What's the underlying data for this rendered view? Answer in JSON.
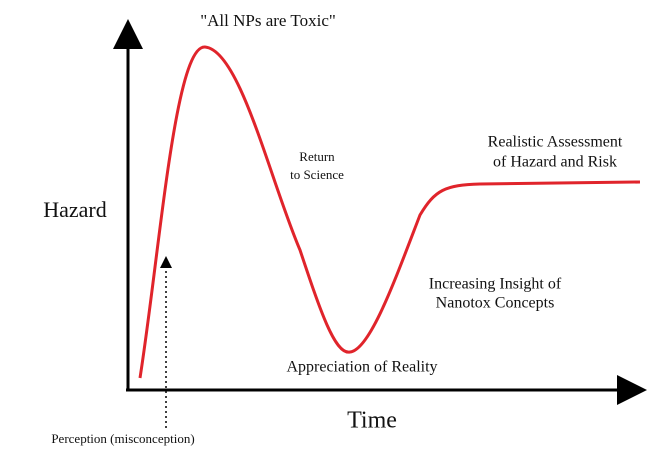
{
  "axes": {
    "y_label": "Hazard",
    "x_label": "Time"
  },
  "annotations": [
    {
      "lines": [
        "\"All NPs are Toxic\""
      ]
    },
    {
      "lines": [
        "Return",
        "to Science"
      ]
    },
    {
      "lines": [
        "Realistic Assessment",
        "of Hazard and Risk"
      ]
    },
    {
      "lines": [
        "Increasing Insight of",
        "Nanotox Concepts"
      ]
    },
    {
      "lines": [
        "Appreciation of Reality"
      ]
    },
    {
      "lines": [
        "Perception (misconception)"
      ]
    }
  ]
}
